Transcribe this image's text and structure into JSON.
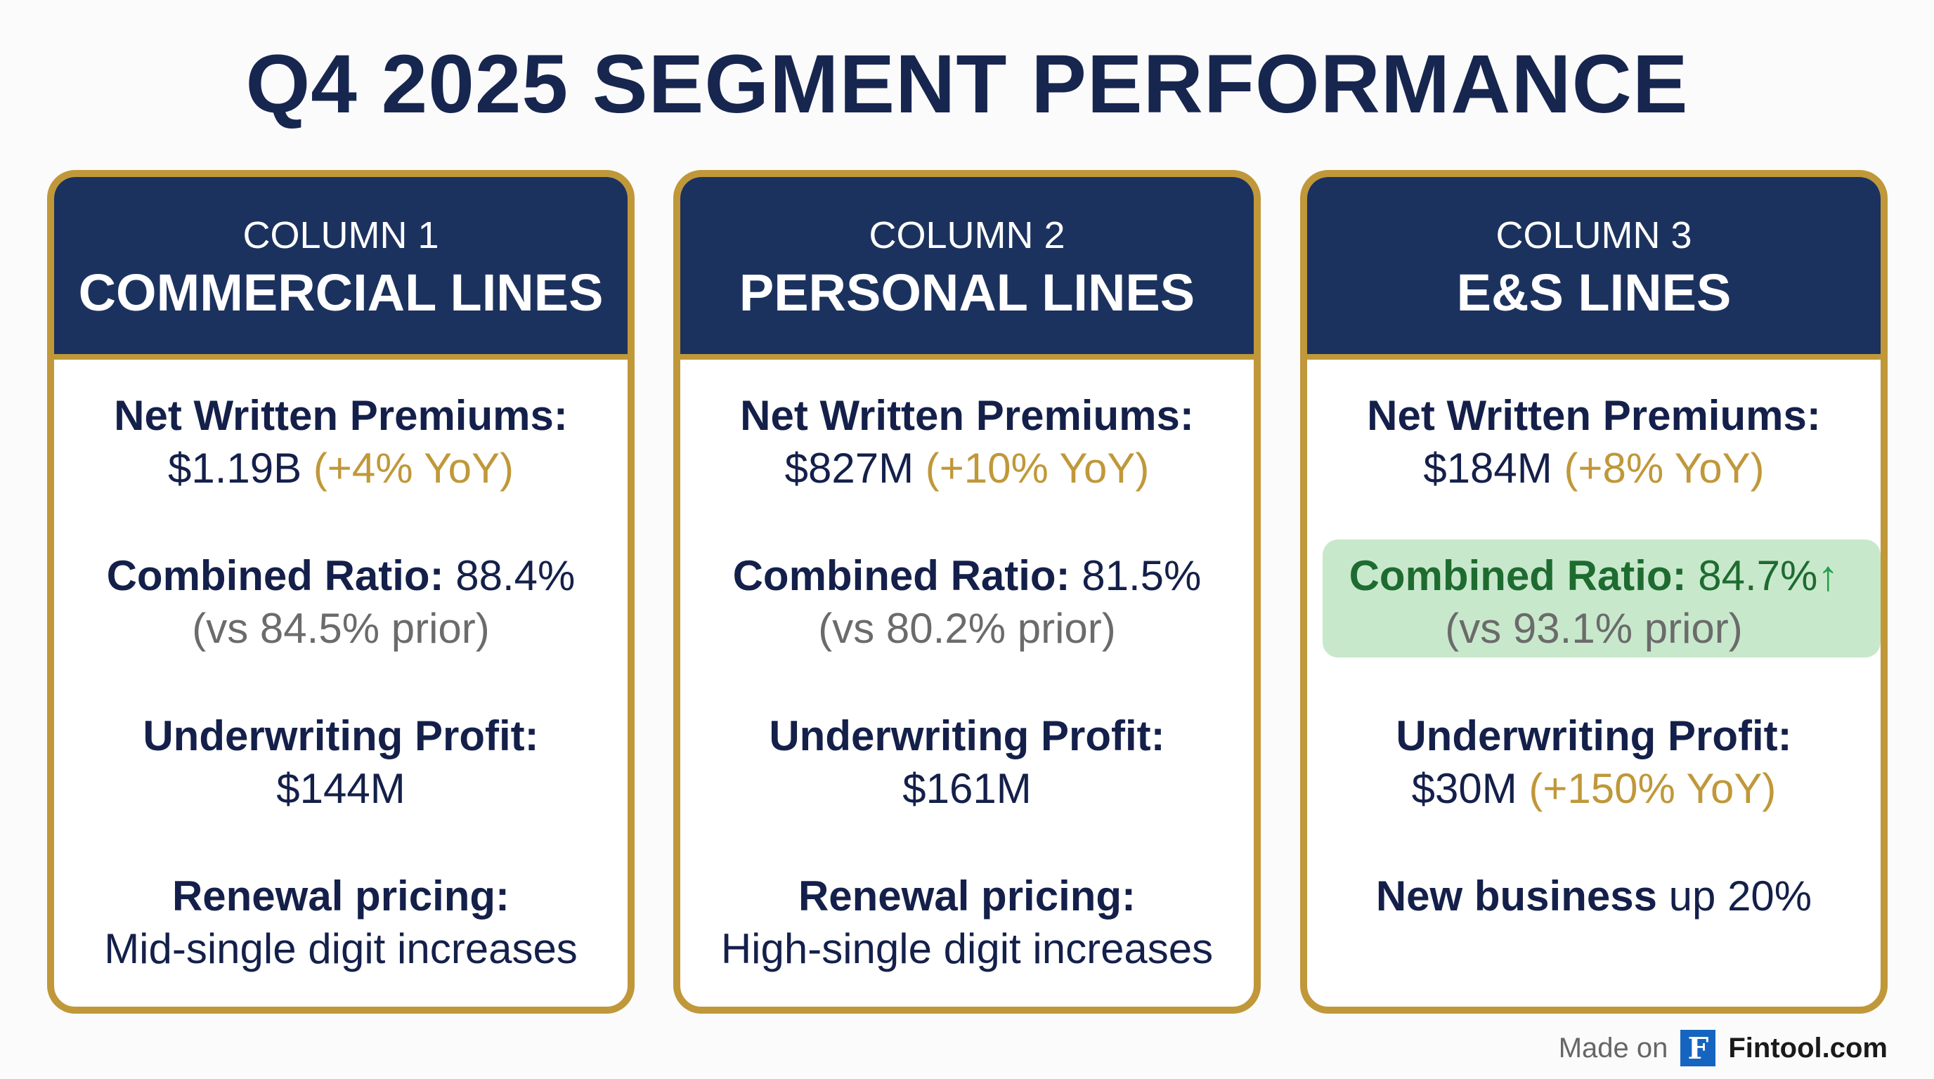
{
  "title": "Q4 2025 SEGMENT PERFORMANCE",
  "colors": {
    "navy": "#1c325e",
    "gold": "#c0983a",
    "highlight": "#c8e8cc",
    "green": "#1e6b30"
  },
  "columns": [
    {
      "label": "COLUMN 1",
      "name": "COMMERCIAL LINES",
      "nwp_label": "Net Written Premiums:",
      "nwp_value": "$1.19B",
      "nwp_change": "(+4% YoY)",
      "cr_label": "Combined Ratio:",
      "cr_value": "88.4%",
      "cr_prior": "(vs 84.5% prior)",
      "up_label": "Underwriting Profit:",
      "up_value": "$144M",
      "last_label": "Renewal pricing:",
      "last_value": "Mid-single digit increases"
    },
    {
      "label": "COLUMN 2",
      "name": "PERSONAL LINES",
      "nwp_label": "Net Written Premiums:",
      "nwp_value": "$827M",
      "nwp_change": "(+10% YoY)",
      "cr_label": "Combined Ratio:",
      "cr_value": "81.5%",
      "cr_prior": "(vs 80.2% prior)",
      "up_label": "Underwriting Profit:",
      "up_value": "$161M",
      "last_label": "Renewal pricing:",
      "last_value": "High-single digit increases"
    },
    {
      "label": "COLUMN 3",
      "name": "E&S LINES",
      "nwp_label": "Net Written Premiums:",
      "nwp_value": "$184M",
      "nwp_change": "(+8% YoY)",
      "cr_label": "Combined Ratio:",
      "cr_value": "84.7%",
      "cr_arrow": "↑",
      "cr_prior": "(vs 93.1% prior)",
      "up_label": "Underwriting Profit:",
      "up_value": "$30M",
      "up_change": "(+150% YoY)",
      "last_label": "New business",
      "last_value": "up 20%"
    }
  ],
  "footer": {
    "made_on": "Made on",
    "logo_letter": "F",
    "brand": "Fintool.com"
  }
}
